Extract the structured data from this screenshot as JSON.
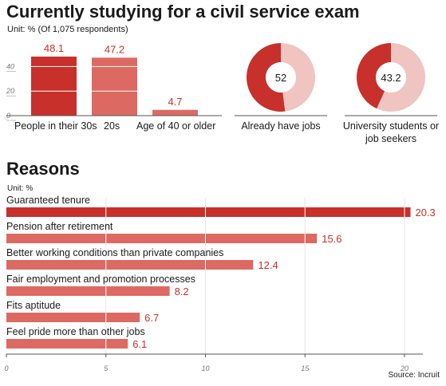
{
  "header": {
    "title": "Currently studying for a civil service exam",
    "unit": "Unit: % (Of 1,075 respondents)"
  },
  "reasons": {
    "title": "Reasons",
    "unit": "Unit: %"
  },
  "source": "Source: Incruit",
  "colors": {
    "dark_red": "#c8302b",
    "medium_red": "#dc6a63",
    "light_pink": "#efc4c1",
    "text": "#1a1a1a",
    "value_text": "#c8302b"
  },
  "chart_data": [
    {
      "type": "bar",
      "title": "",
      "categories": [
        "People in their 30s",
        "20s",
        "Age of 40 or older"
      ],
      "values": [
        48.1,
        47.2,
        4.7
      ],
      "ylim": [
        0,
        50
      ],
      "yticks": [
        0,
        20,
        40
      ],
      "xlabel": "",
      "ylabel": "",
      "grid": false
    },
    {
      "type": "pie",
      "label": "Already have jobs",
      "value": 52,
      "slices": [
        52,
        48
      ]
    },
    {
      "type": "pie",
      "label": "University students or job seekers",
      "value": 43.2,
      "slices": [
        43.2,
        56.8
      ]
    },
    {
      "type": "bar",
      "orientation": "horizontal",
      "title": "Reasons",
      "categories": [
        "Guaranteed tenure",
        "Pension after retirement",
        "Better working conditions than private companies",
        "Fair employment and promotion processes",
        "Fits aptitude",
        "Feel pride more than other jobs"
      ],
      "values": [
        20.3,
        15.6,
        12.4,
        8.2,
        6.7,
        6.1
      ],
      "xlim": [
        0,
        22
      ],
      "xticks": [
        0,
        5,
        10,
        15,
        20
      ],
      "xlabel": "",
      "ylabel": "",
      "grid": true
    }
  ]
}
